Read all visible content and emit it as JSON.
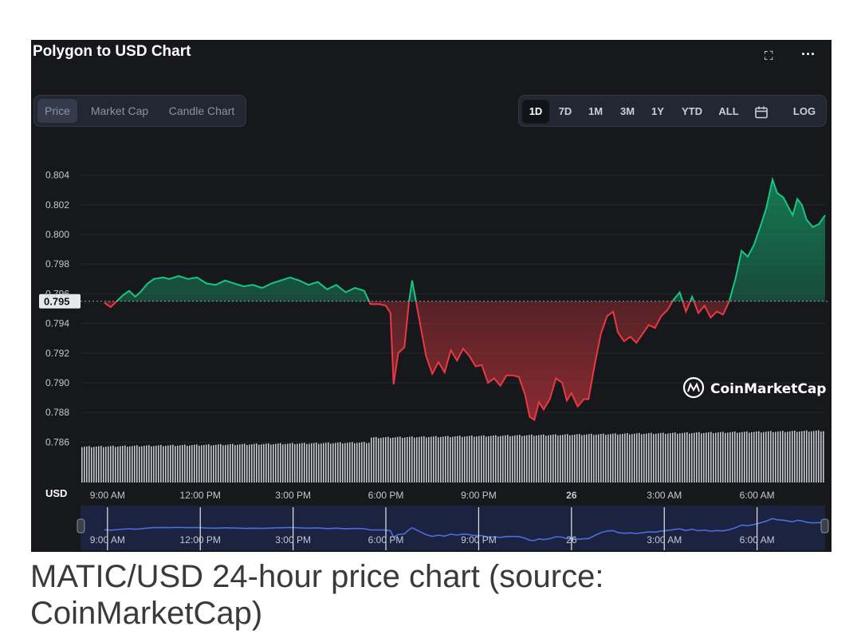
{
  "header": {
    "title": "Polygon to USD Chart",
    "fullscreen_icon": "fullscreen-icon",
    "more_icon": "more-icon"
  },
  "type_tabs": [
    {
      "label": "Price",
      "active": true
    },
    {
      "label": "Market Cap",
      "active": false
    },
    {
      "label": "Candle Chart",
      "active": false
    }
  ],
  "range_tabs": [
    {
      "label": "1D",
      "active": true
    },
    {
      "label": "7D",
      "active": false
    },
    {
      "label": "1M",
      "active": false
    },
    {
      "label": "3M",
      "active": false
    },
    {
      "label": "1Y",
      "active": false
    },
    {
      "label": "YTD",
      "active": false
    },
    {
      "label": "ALL",
      "active": false
    },
    {
      "label": "",
      "icon": "calendar-icon",
      "active": false
    },
    {
      "label": "LOG",
      "active": false
    }
  ],
  "watermark": "CoinMarketCap",
  "caption": "MATIC/USD 24-hour price chart (source: CoinMarketCap)",
  "colors": {
    "up": "#16c784",
    "down": "#ea3943",
    "navigator": "#4a6ee0",
    "background": "#17181b"
  },
  "chart_data": {
    "type": "line",
    "ylabel": "USD",
    "ylim": [
      0.785,
      0.805
    ],
    "y_ticks": [
      "0.804",
      "0.802",
      "0.800",
      "0.798",
      "0.796",
      "0.794",
      "0.792",
      "0.790",
      "0.788",
      "0.786"
    ],
    "x_tick_labels": [
      "9:00 AM",
      "12:00 PM",
      "3:00 PM",
      "6:00 PM",
      "9:00 PM",
      "26",
      "3:00 AM",
      "6:00 AM"
    ],
    "x_tick_hours": [
      9,
      12,
      15,
      18,
      21,
      24,
      27,
      30
    ],
    "x_range_hours": [
      8.85,
      32.2
    ],
    "reference_price": 0.7955,
    "reference_label": "0.795",
    "price_series": [
      [
        8.9,
        0.7954
      ],
      [
        9.1,
        0.7951
      ],
      [
        9.3,
        0.7955
      ],
      [
        9.5,
        0.7959
      ],
      [
        9.7,
        0.7962
      ],
      [
        9.9,
        0.7958
      ],
      [
        10.1,
        0.7962
      ],
      [
        10.3,
        0.7967
      ],
      [
        10.5,
        0.797
      ],
      [
        10.8,
        0.7971
      ],
      [
        11.0,
        0.797
      ],
      [
        11.3,
        0.7972
      ],
      [
        11.6,
        0.797
      ],
      [
        11.9,
        0.7971
      ],
      [
        12.2,
        0.7967
      ],
      [
        12.5,
        0.7966
      ],
      [
        12.8,
        0.7969
      ],
      [
        13.1,
        0.7967
      ],
      [
        13.4,
        0.7965
      ],
      [
        13.7,
        0.7966
      ],
      [
        14.0,
        0.7964
      ],
      [
        14.3,
        0.7967
      ],
      [
        14.6,
        0.7969
      ],
      [
        14.9,
        0.7971
      ],
      [
        15.2,
        0.7969
      ],
      [
        15.5,
        0.7966
      ],
      [
        15.8,
        0.7968
      ],
      [
        16.1,
        0.7963
      ],
      [
        16.4,
        0.7966
      ],
      [
        16.7,
        0.7961
      ],
      [
        17.0,
        0.7964
      ],
      [
        17.3,
        0.7962
      ],
      [
        17.5,
        0.7953
      ],
      [
        17.8,
        0.7953
      ],
      [
        18.0,
        0.7952
      ],
      [
        18.15,
        0.7947
      ],
      [
        18.25,
        0.7899
      ],
      [
        18.4,
        0.792
      ],
      [
        18.6,
        0.7924
      ],
      [
        18.75,
        0.7955
      ],
      [
        18.85,
        0.7969
      ],
      [
        19.0,
        0.7952
      ],
      [
        19.15,
        0.7935
      ],
      [
        19.3,
        0.7918
      ],
      [
        19.5,
        0.7906
      ],
      [
        19.7,
        0.7914
      ],
      [
        19.9,
        0.7907
      ],
      [
        20.1,
        0.7922
      ],
      [
        20.3,
        0.7915
      ],
      [
        20.5,
        0.7923
      ],
      [
        20.7,
        0.7918
      ],
      [
        20.9,
        0.7911
      ],
      [
        21.1,
        0.7912
      ],
      [
        21.3,
        0.79
      ],
      [
        21.5,
        0.7903
      ],
      [
        21.7,
        0.7898
      ],
      [
        21.9,
        0.7905
      ],
      [
        22.1,
        0.7905
      ],
      [
        22.3,
        0.7904
      ],
      [
        22.5,
        0.7892
      ],
      [
        22.65,
        0.7877
      ],
      [
        22.8,
        0.7875
      ],
      [
        22.95,
        0.7887
      ],
      [
        23.1,
        0.7882
      ],
      [
        23.3,
        0.7889
      ],
      [
        23.5,
        0.7903
      ],
      [
        23.7,
        0.79
      ],
      [
        23.85,
        0.7888
      ],
      [
        24.0,
        0.7893
      ],
      [
        24.2,
        0.7884
      ],
      [
        24.4,
        0.7889
      ],
      [
        24.55,
        0.7889
      ],
      [
        24.75,
        0.7912
      ],
      [
        24.95,
        0.7933
      ],
      [
        25.15,
        0.7945
      ],
      [
        25.35,
        0.7948
      ],
      [
        25.5,
        0.7934
      ],
      [
        25.7,
        0.7928
      ],
      [
        25.9,
        0.7931
      ],
      [
        26.1,
        0.7927
      ],
      [
        26.3,
        0.7933
      ],
      [
        26.5,
        0.7939
      ],
      [
        26.7,
        0.7937
      ],
      [
        26.9,
        0.7945
      ],
      [
        27.1,
        0.7949
      ],
      [
        27.3,
        0.7956
      ],
      [
        27.5,
        0.7961
      ],
      [
        27.7,
        0.7948
      ],
      [
        27.9,
        0.7958
      ],
      [
        28.1,
        0.7947
      ],
      [
        28.3,
        0.7952
      ],
      [
        28.5,
        0.7944
      ],
      [
        28.7,
        0.7948
      ],
      [
        28.9,
        0.7946
      ],
      [
        29.1,
        0.7955
      ],
      [
        29.3,
        0.797
      ],
      [
        29.5,
        0.7989
      ],
      [
        29.7,
        0.7985
      ],
      [
        29.9,
        0.7993
      ],
      [
        30.1,
        0.8005
      ],
      [
        30.3,
        0.8018
      ],
      [
        30.5,
        0.8037
      ],
      [
        30.65,
        0.8028
      ],
      [
        30.85,
        0.8025
      ],
      [
        31.0,
        0.8019
      ],
      [
        31.15,
        0.8013
      ],
      [
        31.3,
        0.8024
      ],
      [
        31.45,
        0.802
      ],
      [
        31.6,
        0.801
      ],
      [
        31.8,
        0.8005
      ],
      [
        32.0,
        0.8007
      ],
      [
        32.2,
        0.8013
      ]
    ],
    "navigator_x_labels": [
      "9:00 AM",
      "12:00 PM",
      "3:00 PM",
      "6:00 PM",
      "9:00 PM",
      "26",
      "3:00 AM",
      "6:00 AM"
    ]
  }
}
